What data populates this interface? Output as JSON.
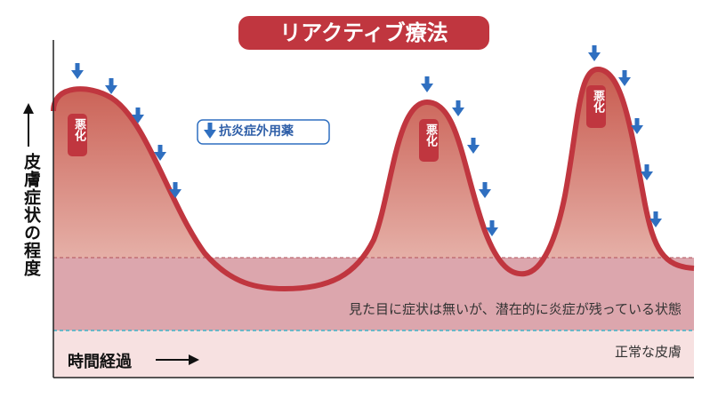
{
  "header": {
    "title": "リアクティブ療法"
  },
  "legend": {
    "label": "抗炎症外用薬"
  },
  "axes": {
    "y_label": "皮膚症状の程度",
    "x_label": "時間経過"
  },
  "zones": {
    "latent": "見た目に症状は無いが、潜在的に炎症が残っている状態",
    "normal": "正常な皮膚"
  },
  "peaks": [
    {
      "label": "悪化"
    },
    {
      "label": "悪化"
    },
    {
      "label": "悪化"
    }
  ]
}
